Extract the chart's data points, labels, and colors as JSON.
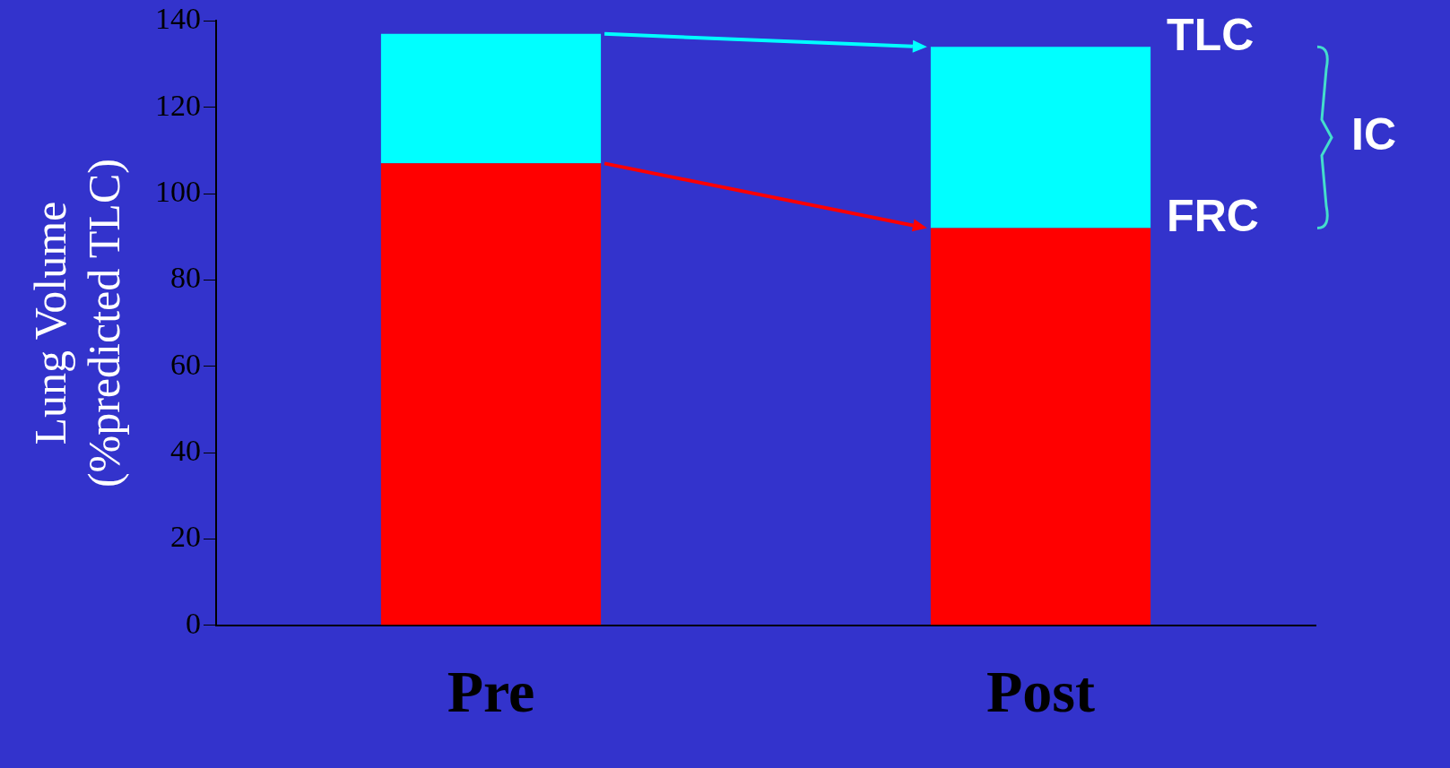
{
  "chart_data": {
    "type": "bar",
    "stacked": true,
    "ylabel": "Lung Volume\n(%predicted TLC)",
    "categories": [
      "Pre",
      "Post"
    ],
    "series": [
      {
        "color": "#ff0000",
        "values": [
          107,
          92
        ]
      },
      {
        "color": "#00ffff",
        "values": [
          30,
          42
        ]
      }
    ],
    "ylim": [
      0,
      140
    ],
    "yticks": [
      0,
      20,
      40,
      60,
      80,
      100,
      120,
      140
    ],
    "grid": false,
    "legend": false,
    "annotations": [
      {
        "text": "TLC",
        "x": "Post",
        "y": 134
      },
      {
        "text": "FRC",
        "x": "Post",
        "y": 92
      },
      "IC"
    ]
  }
}
